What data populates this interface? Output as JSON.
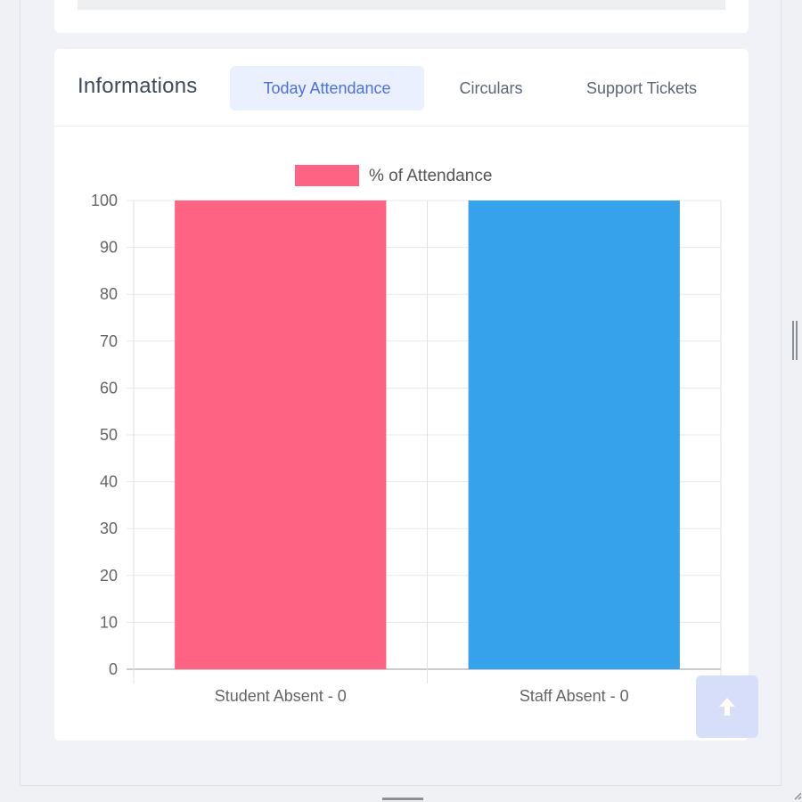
{
  "card": {
    "title": "Informations",
    "tabs": [
      {
        "label": "Today Attendance",
        "active": true
      },
      {
        "label": "Circulars",
        "active": false
      },
      {
        "label": "Support Tickets",
        "active": false
      }
    ]
  },
  "chart_data": {
    "type": "bar",
    "legend": "% of Attendance",
    "legend_color": "#ff6384",
    "categories": [
      "Student Absent - 0",
      "Staff Absent - 0"
    ],
    "values": [
      100,
      100
    ],
    "colors": [
      "#ff6384",
      "#36a2eb"
    ],
    "ylim": [
      0,
      100
    ],
    "yticks": [
      0,
      10,
      20,
      30,
      40,
      50,
      60,
      70,
      80,
      90,
      100
    ],
    "grid": true
  },
  "scroll_top": {
    "icon": "arrow-up-icon"
  }
}
